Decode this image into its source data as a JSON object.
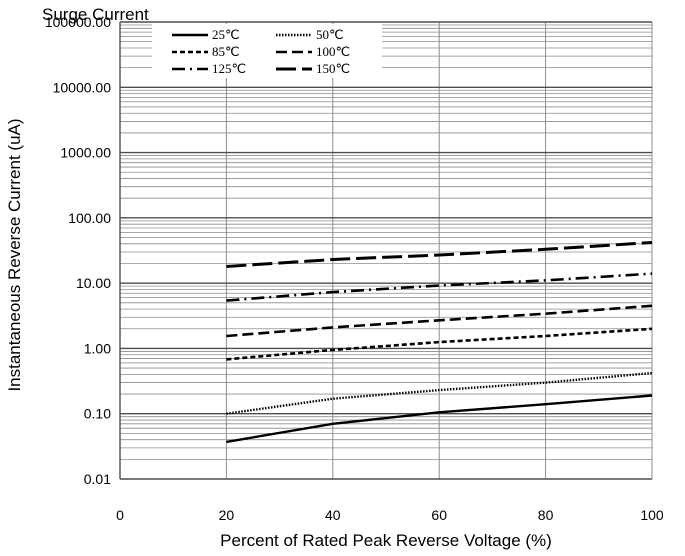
{
  "chart_data": {
    "type": "line",
    "title": "Surge Current",
    "xlabel": "Percent of  Rated Peak Reverse Voltage (%)",
    "ylabel": "Instantaneous Reverse Current (uA)",
    "x_scale": "linear",
    "y_scale": "log",
    "xlim": [
      0,
      100
    ],
    "ylim": [
      0.01,
      100000
    ],
    "x_ticks": [
      0,
      20,
      40,
      60,
      80,
      100
    ],
    "x_tick_labels": [
      "0",
      "20",
      "40",
      "60",
      "80",
      "100"
    ],
    "y_ticks": [
      0.01,
      0.1,
      1,
      10,
      100,
      1000,
      10000,
      100000
    ],
    "y_tick_labels": [
      "0.01",
      "0.10",
      "1.00",
      "10.00",
      "100.00",
      "1000.00",
      "10000.00",
      "100000.00"
    ],
    "grid": true,
    "legend_position": "top-left",
    "x": [
      20,
      40,
      60,
      80,
      100
    ],
    "series": [
      {
        "name": "25℃",
        "values": [
          0.037,
          0.07,
          0.105,
          0.14,
          0.19
        ],
        "dash": "solid"
      },
      {
        "name": "50℃",
        "values": [
          0.1,
          0.17,
          0.23,
          0.3,
          0.42
        ],
        "dash": "dotted"
      },
      {
        "name": "85℃",
        "values": [
          0.68,
          0.95,
          1.25,
          1.55,
          2.0
        ],
        "dash": "short-dash"
      },
      {
        "name": "100℃",
        "values": [
          1.55,
          2.1,
          2.7,
          3.4,
          4.5
        ],
        "dash": "dash"
      },
      {
        "name": "125℃",
        "values": [
          5.4,
          7.3,
          9.2,
          11.0,
          14.0
        ],
        "dash": "dash-dot"
      },
      {
        "name": "150℃",
        "values": [
          18,
          23,
          27,
          33,
          42
        ],
        "dash": "long-dash"
      }
    ]
  }
}
